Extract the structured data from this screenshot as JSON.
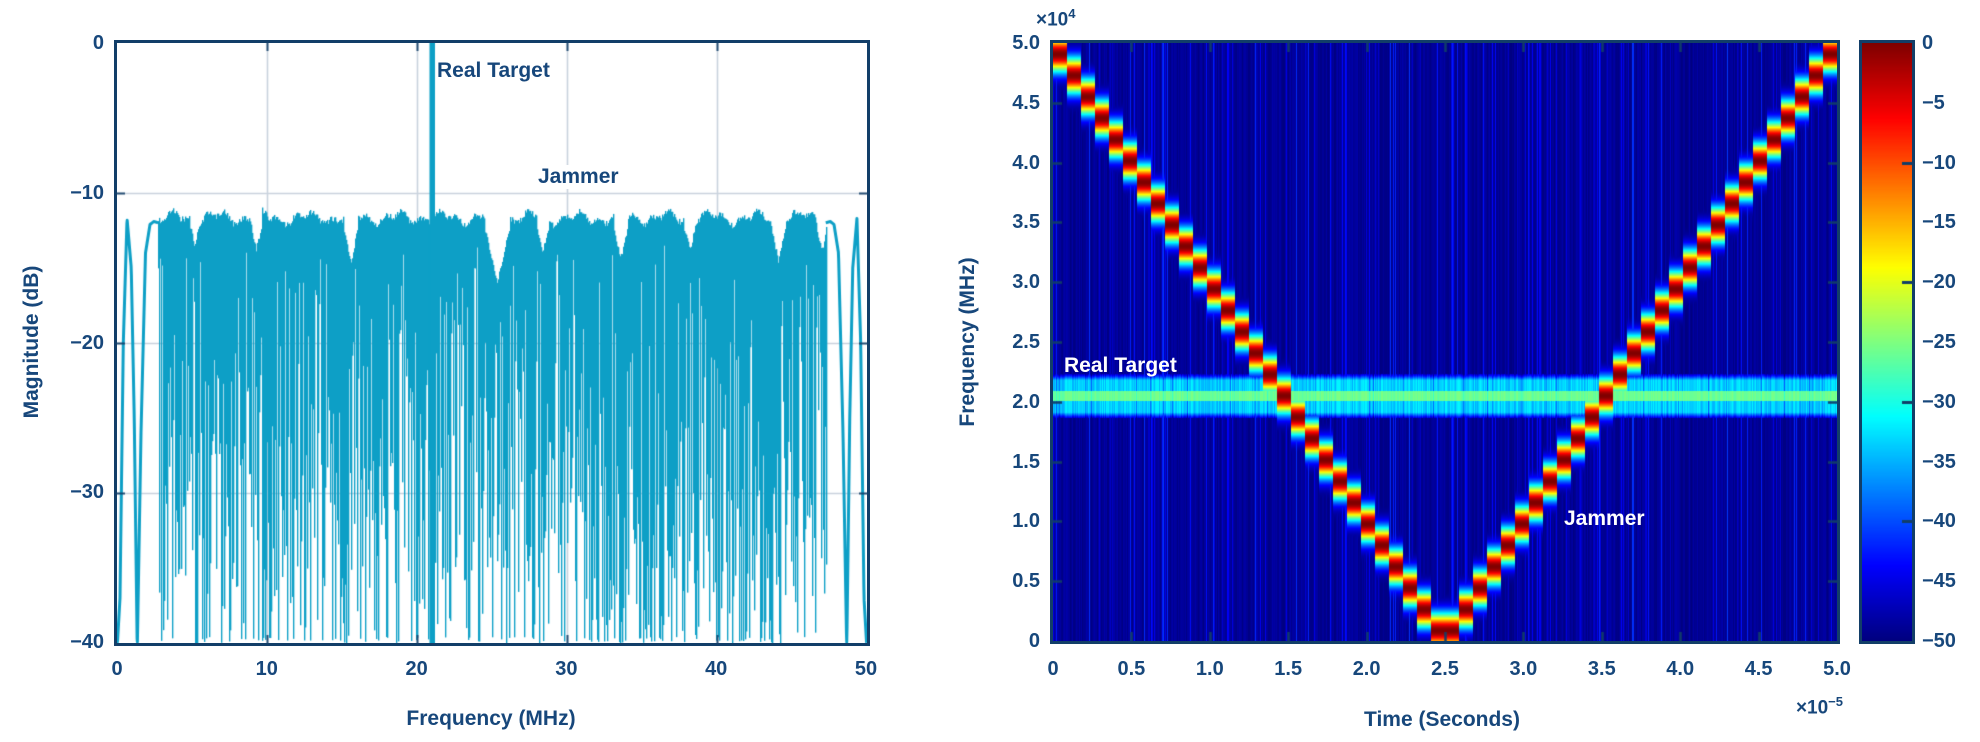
{
  "figure": {
    "background": "#ffffff",
    "text_navy": "#17477b",
    "border_navy": "#123e68",
    "signal_teal": "#0d9fc6",
    "gridline_gray": "#c9d2dd"
  },
  "left_plot": {
    "xlabel": "Frequency (MHz)",
    "ylabel": "Magnitude (dB)",
    "x_ticks": [
      "0",
      "10",
      "20",
      "30",
      "40",
      "50"
    ],
    "y_ticks": [
      "0",
      "−10",
      "−20",
      "−30",
      "−40"
    ],
    "annotations": {
      "real_target": "Real Target",
      "jammer": "Jammer"
    }
  },
  "right_plot": {
    "xlabel": "Time (Seconds)",
    "ylabel": "Frequency (MHz)",
    "x_ticks": [
      "0",
      "0.5",
      "1.0",
      "1.5",
      "2.0",
      "2.5",
      "3.0",
      "3.5",
      "4.0",
      "4.5",
      "5.0"
    ],
    "y_ticks": [
      "0",
      "0.5",
      "1.0",
      "1.5",
      "2.0",
      "2.5",
      "3.0",
      "3.5",
      "4.0",
      "4.5",
      "5.0"
    ],
    "x_exp_base": "×10",
    "x_exp_sup": "−5",
    "y_exp_base": "×10",
    "y_exp_sup": "4",
    "annotations": {
      "real_target": "Real Target",
      "jammer": "Jammer"
    }
  },
  "colorbar": {
    "tick_labels": [
      "0",
      "−5",
      "−10",
      "−15",
      "−20",
      "−25",
      "−30",
      "−35",
      "−40",
      "−45",
      "−50"
    ],
    "range_db": [
      -50,
      0
    ],
    "colormap": "jet"
  },
  "chart_data": [
    {
      "type": "line",
      "title": "",
      "xlabel": "Frequency (MHz)",
      "ylabel": "Magnitude (dB)",
      "xlim": [
        0,
        50
      ],
      "ylim": [
        -40,
        0
      ],
      "xticks": [
        0,
        10,
        20,
        30,
        40,
        50
      ],
      "yticks": [
        0,
        -10,
        -20,
        -30,
        -40
      ],
      "grid": true,
      "noise_floor_db": -12,
      "target": {
        "label": "Real Target",
        "freq_mhz": 21,
        "peak_db": 0
      },
      "jammer": {
        "label": "Jammer",
        "description": "broadband barrage noise floor at about -12 dB across 0-50 MHz"
      },
      "envelope_notches": [
        [
          5.2,
          -13.3,
          0.3
        ],
        [
          9.3,
          -13.6,
          0.35
        ],
        [
          15.6,
          -14.5,
          0.5
        ],
        [
          25.35,
          -15.8,
          0.85
        ],
        [
          28.4,
          -13.8,
          0.4
        ],
        [
          33.6,
          -14.2,
          0.5
        ],
        [
          38.2,
          -13.6,
          0.4
        ],
        [
          44.1,
          -14.3,
          0.5
        ],
        [
          47.0,
          -13.8,
          0.35
        ]
      ]
    },
    {
      "type": "heatmap",
      "xlabel": "Time (Seconds)",
      "ylabel": "Frequency (MHz)",
      "xlim": [
        0,
        5e-05
      ],
      "ylim": [
        0,
        50000
      ],
      "x_tick_step": 5e-06,
      "y_tick_step": 5000,
      "colormap": "jet",
      "color_range_db": [
        -50,
        0
      ],
      "jammer_sweep": {
        "label": "Jammer",
        "shape": "V",
        "f_start": 50000,
        "f_vertex": 0,
        "t_vertex": 2.5e-05,
        "f_end": 50000
      },
      "target_line": {
        "label": "Real Target",
        "freq": 20500,
        "core_level_db": -26,
        "flank_level_db": -33.5,
        "core_halfwidth": 420,
        "flank_halfwidth": 1340
      },
      "background_db": -50
    }
  ]
}
